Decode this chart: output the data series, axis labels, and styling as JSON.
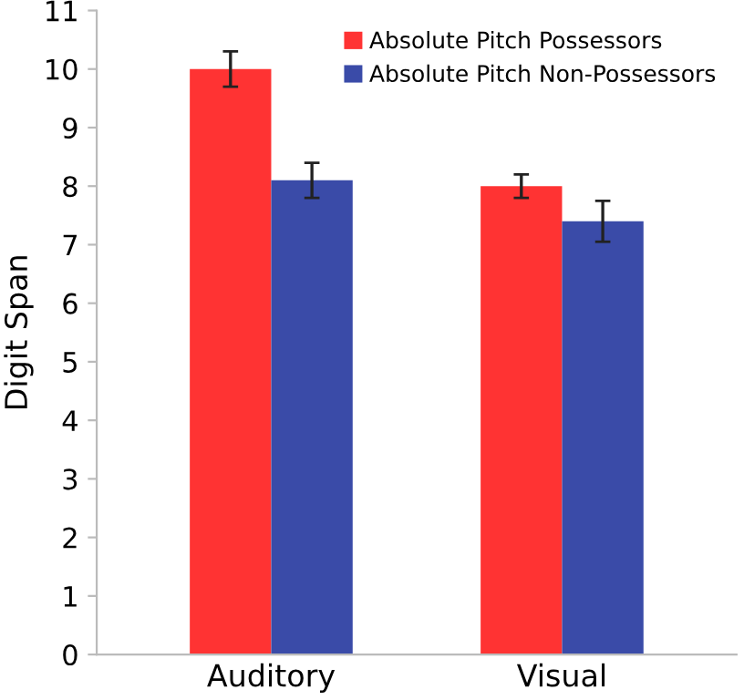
{
  "chart_data": {
    "type": "bar",
    "ylabel": "Digit Span",
    "categories": [
      "Auditory",
      "Visual"
    ],
    "series": [
      {
        "name": "Absolute Pitch Possessors",
        "color": "#ff3333",
        "values": [
          10,
          8
        ],
        "errors": [
          0.3,
          0.2
        ]
      },
      {
        "name": "Absolute Pitch Non-Possessors",
        "color": "#3a4ba8",
        "values": [
          8.1,
          7.4
        ],
        "errors": [
          0.3,
          0.35
        ]
      }
    ],
    "ylim": [
      0,
      11
    ],
    "yticks": [
      0,
      1,
      2,
      3,
      4,
      5,
      6,
      7,
      8,
      9,
      10,
      11
    ],
    "grid": false,
    "legend": "top right"
  }
}
